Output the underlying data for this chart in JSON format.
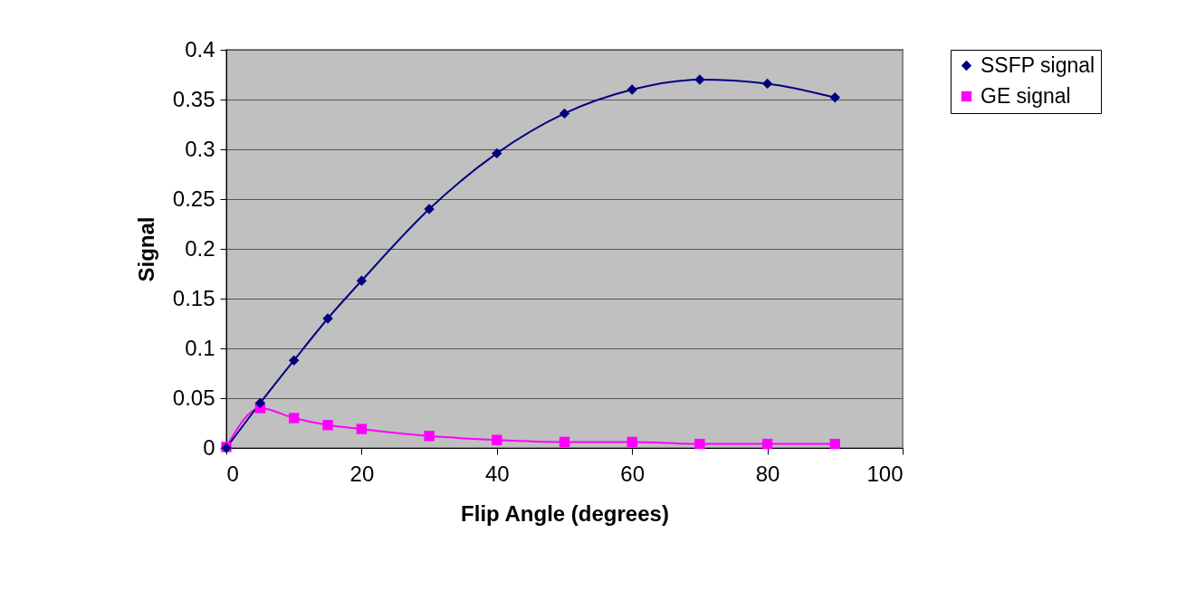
{
  "chart_data": {
    "type": "line",
    "xlabel": "Flip Angle (degrees)",
    "ylabel": "Signal",
    "x": [
      0,
      5,
      10,
      15,
      20,
      30,
      40,
      50,
      60,
      70,
      80,
      90
    ],
    "series": [
      {
        "name": "SSFP signal",
        "color": "#000080",
        "marker": "diamond",
        "values": [
          0,
          0.045,
          0.088,
          0.13,
          0.168,
          0.24,
          0.296,
          0.336,
          0.36,
          0.37,
          0.366,
          0.352
        ]
      },
      {
        "name": "GE signal",
        "color": "#ff00ff",
        "marker": "square",
        "values": [
          0.001,
          0.04,
          0.03,
          0.023,
          0.019,
          0.012,
          0.008,
          0.006,
          0.006,
          0.004,
          0.004,
          0.004
        ]
      }
    ],
    "xlim": [
      0,
      100
    ],
    "xticks": [
      0,
      20,
      40,
      60,
      80,
      100
    ],
    "ylim": [
      0,
      0.4
    ],
    "yticks": [
      0,
      0.05,
      0.1,
      0.15,
      0.2,
      0.25,
      0.3,
      0.35,
      0.4
    ],
    "grid": "y",
    "legend": "right",
    "line_style": "solid"
  }
}
